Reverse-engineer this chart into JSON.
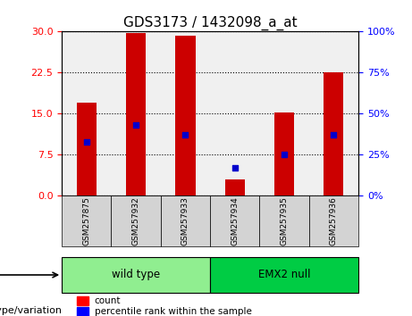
{
  "title": "GDS3173 / 1432098_a_at",
  "samples": [
    "GSM257875",
    "GSM257932",
    "GSM257933",
    "GSM257934",
    "GSM257935",
    "GSM257936"
  ],
  "counts": [
    17,
    29.7,
    29.3,
    3,
    15.2,
    22.5
  ],
  "percentile_ranks": [
    33,
    43,
    37,
    17,
    25,
    37
  ],
  "bar_color": "#cc0000",
  "dot_color": "#0000cc",
  "ylim_left": [
    0,
    30
  ],
  "ylim_right": [
    0,
    100
  ],
  "yticks_left": [
    0,
    7.5,
    15,
    22.5,
    30
  ],
  "yticks_right": [
    0,
    25,
    50,
    75,
    100
  ],
  "groups": [
    {
      "label": "wild type",
      "samples": [
        "GSM257875",
        "GSM257932",
        "GSM257933"
      ],
      "color": "#90ee90"
    },
    {
      "label": "EMX2 null",
      "samples": [
        "GSM257934",
        "GSM257935",
        "GSM257936"
      ],
      "color": "#00cc00"
    }
  ],
  "group_label": "genotype/variation",
  "legend_count_label": "count",
  "legend_pct_label": "percentile rank within the sample",
  "grid_color": "#000000",
  "plot_bg": "#f0f0f0",
  "bar_width": 0.4
}
